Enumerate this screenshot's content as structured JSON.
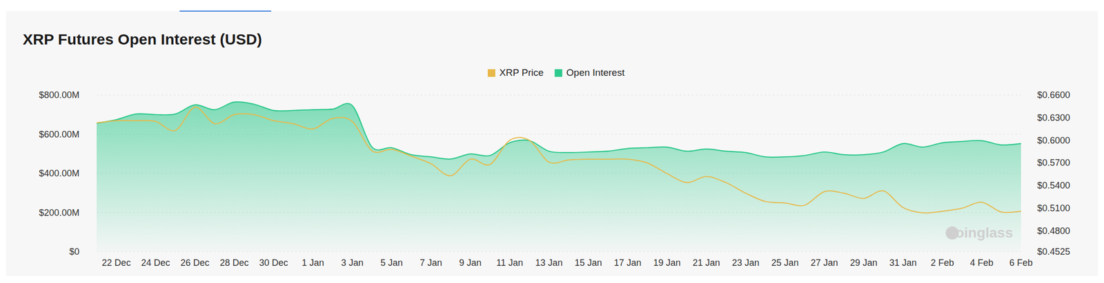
{
  "chart_data": {
    "type": "line",
    "title": "XRP Futures Open Interest (USD)",
    "watermark": "coinglass",
    "categories": [
      null,
      "22 Dec",
      null,
      "24 Dec",
      null,
      "26 Dec",
      null,
      "28 Dec",
      null,
      "30 Dec",
      null,
      "1 Jan",
      null,
      "3 Jan",
      null,
      "5 Jan",
      null,
      "7 Jan",
      null,
      "9 Jan",
      null,
      "11 Jan",
      null,
      "13 Jan",
      null,
      "15 Jan",
      null,
      "17 Jan",
      null,
      "19 Jan",
      null,
      "21 Jan",
      null,
      "23 Jan",
      null,
      "25 Jan",
      null,
      "27 Jan",
      null,
      "29 Jan",
      null,
      "31 Jan",
      null,
      "2 Feb",
      null,
      "4 Feb",
      null,
      "6 Feb"
    ],
    "series": [
      {
        "name": "XRP Price",
        "type": "line",
        "axis": "y2",
        "color": "#e8b94a",
        "values": [
          0.623,
          0.626,
          0.626,
          0.625,
          0.613,
          0.644,
          0.622,
          0.634,
          0.634,
          0.626,
          0.622,
          0.615,
          0.629,
          0.625,
          0.586,
          0.588,
          0.579,
          0.569,
          0.553,
          0.575,
          0.568,
          0.6,
          0.6,
          0.571,
          0.574,
          0.575,
          0.575,
          0.575,
          0.57,
          0.556,
          0.544,
          0.552,
          0.544,
          0.53,
          0.519,
          0.517,
          0.514,
          0.532,
          0.53,
          0.523,
          0.533,
          0.511,
          0.504,
          0.506,
          0.51,
          0.518,
          0.505,
          0.506
        ]
      },
      {
        "name": "Open Interest",
        "type": "area",
        "color": "#2ec98c",
        "values": [
          656,
          674,
          703,
          700,
          703,
          750,
          725,
          764,
          753,
          721,
          721,
          725,
          728,
          746,
          534,
          531,
          495,
          484,
          473,
          499,
          491,
          556,
          567,
          513,
          506,
          509,
          513,
          527,
          531,
          534,
          513,
          524,
          513,
          506,
          484,
          484,
          491,
          509,
          495,
          495,
          509,
          552,
          534,
          556,
          563,
          567,
          545,
          552
        ]
      }
    ],
    "ylim": [
      0,
      800
    ],
    "yticks": [
      {
        "value": 0,
        "label": "$0"
      },
      {
        "value": 200,
        "label": "$200.00M"
      },
      {
        "value": 400,
        "label": "$400.00M"
      },
      {
        "value": 600,
        "label": "$600.00M"
      },
      {
        "value": 800,
        "label": "$800.00M"
      }
    ],
    "y2lim": [
      0.4525,
      0.66
    ],
    "y2ticks": [
      {
        "value": 0.4525,
        "label": "$0.4525"
      },
      {
        "value": 0.48,
        "label": "$0.4800"
      },
      {
        "value": 0.51,
        "label": "$0.5100"
      },
      {
        "value": 0.54,
        "label": "$0.5400"
      },
      {
        "value": 0.57,
        "label": "$0.5700"
      },
      {
        "value": 0.6,
        "label": "$0.6000"
      },
      {
        "value": 0.63,
        "label": "$0.6300"
      },
      {
        "value": 0.66,
        "label": "$0.6600"
      }
    ],
    "grid": true,
    "legend": "top"
  }
}
